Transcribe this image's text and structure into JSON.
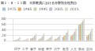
{
  "chart_data": {
    "type": "bar",
    "title": "第１－８－１１図　大学教員における分野別女性割合",
    "categories": [
      "理学",
      "工学",
      "農学",
      "保健",
      "商学",
      "法学",
      "教育",
      "人文",
      "家政",
      "芸術"
    ],
    "series": [
      {
        "name": "1975",
        "color": "#a8c4d8",
        "values": [
          3.0,
          2.0,
          8.0,
          5.0,
          4.0,
          6.0,
          14.0,
          16.0,
          58.0,
          16.0
        ]
      },
      {
        "name": "1985",
        "color": "#e8a860",
        "values": [
          3.5,
          2.5,
          9.5,
          7.0,
          5.0,
          7.0,
          17.0,
          20.0,
          61.0,
          20.0
        ]
      },
      {
        "name": "1995",
        "color": "#b8d8a8",
        "values": [
          5.0,
          3.5,
          13.0,
          11.0,
          8.5,
          10.0,
          22.0,
          26.0,
          66.0,
          26.0
        ]
      },
      {
        "name": "2005",
        "color": "#c8b8d8",
        "values": [
          8.0,
          5.5,
          18.0,
          17.0,
          12.0,
          15.0,
          30.0,
          34.0,
          73.0,
          35.0
        ]
      },
      {
        "name": "2015",
        "color": "#d8d8c0",
        "values": [
          14.0,
          9.0,
          26.0,
          27.0,
          19.0,
          21.0,
          38.0,
          44.0,
          80.0,
          46.0
        ]
      }
    ],
    "ylim": [
      0,
      80
    ],
    "yticks": [
      0,
      20,
      40,
      60,
      80
    ],
    "grid": true,
    "legend": "upper left"
  }
}
